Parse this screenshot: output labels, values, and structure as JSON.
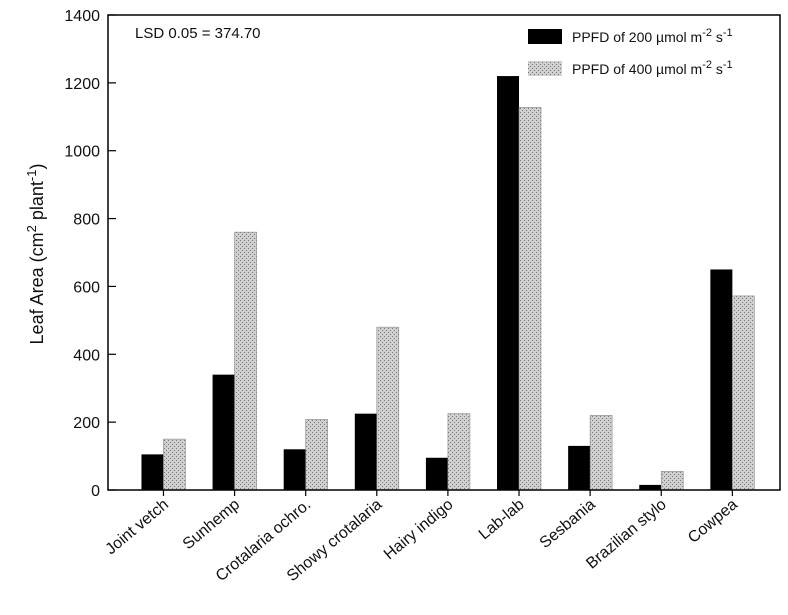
{
  "chart_data": {
    "type": "bar",
    "annotation": "LSD 0.05 = 374.70",
    "ylabel_main": "Leaf Area (cm",
    "ylabel_sup1": "2",
    "ylabel_mid": " plant",
    "ylabel_sup2": "-1",
    "ylabel_end": ")",
    "ylim": [
      0,
      1400
    ],
    "yticks": [
      0,
      200,
      400,
      600,
      800,
      1000,
      1200,
      1400
    ],
    "categories": [
      "Joint vetch",
      "Sunhemp",
      "Crotalaria ochro.",
      "Showy crotalaria",
      "Hairy indigo",
      "Lab-lab",
      "Sesbania",
      "Brazilian stylo",
      "Cowpea"
    ],
    "series": [
      {
        "name": "PPFD of 200 µmol m-2 s-1",
        "legend_main": "PPFD of 200 µmol m",
        "legend_sup1": "-2",
        "legend_mid": " s",
        "legend_sup2": "-1",
        "color": "#000000",
        "values": [
          105,
          340,
          120,
          225,
          95,
          1220,
          130,
          15,
          650
        ]
      },
      {
        "name": "PPFD of 400 µmol m-2 s-1",
        "legend_main": "PPFD of 400 µmol m",
        "legend_sup1": "-2",
        "legend_mid": " s",
        "legend_sup2": "-1",
        "color": "#bdbdbd",
        "values": [
          150,
          760,
          208,
          480,
          225,
          1128,
          220,
          55,
          572
        ]
      }
    ],
    "grid": false,
    "legend_position": "top-right"
  }
}
